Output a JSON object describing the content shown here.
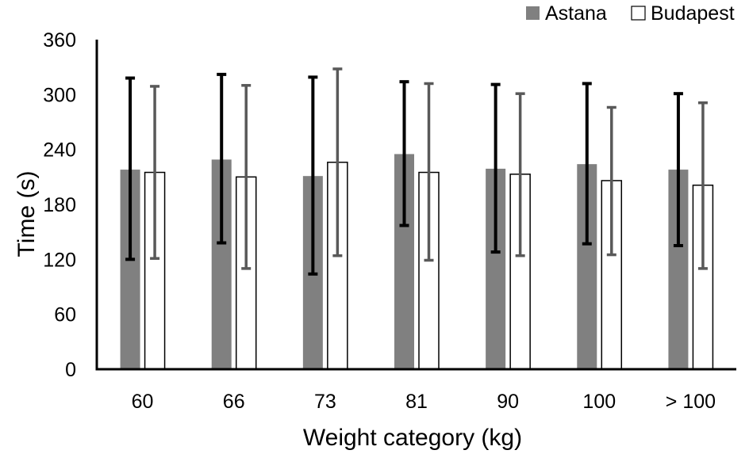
{
  "chart_data": {
    "type": "bar",
    "title": "",
    "xlabel": "Weight category (kg)",
    "ylabel": "Time (s)",
    "categories": [
      "60",
      "66",
      "73",
      "81",
      "90",
      "100",
      "> 100"
    ],
    "ylim": [
      0,
      360
    ],
    "yticks": [
      "0",
      "60",
      "120",
      "180",
      "240",
      "300",
      "360"
    ],
    "grid": false,
    "legend_position": "top-right",
    "error_bars": true,
    "series": [
      {
        "name": "Astana",
        "color": "#808080",
        "fill": "solid",
        "values": [
          218,
          229,
          211,
          235,
          219,
          224,
          218
        ],
        "error_low": [
          120,
          138,
          104,
          157,
          128,
          137,
          135
        ],
        "error_high": [
          318,
          322,
          319,
          314,
          311,
          312,
          301
        ]
      },
      {
        "name": "Budapest",
        "color": "#ffffff",
        "fill": "outline",
        "values": [
          215,
          210,
          226,
          215,
          213,
          206,
          201
        ],
        "error_low": [
          121,
          110,
          124,
          119,
          124,
          125,
          110
        ],
        "error_high": [
          309,
          310,
          328,
          312,
          301,
          286,
          291
        ]
      }
    ]
  }
}
